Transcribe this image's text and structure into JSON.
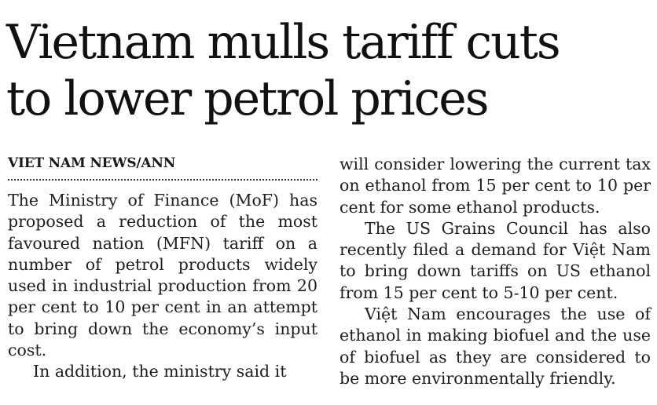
{
  "article": {
    "headline_line1": "Vietnam mulls tariff cuts",
    "headline_line2": "to lower petrol prices",
    "byline": "VIET NAM NEWS/ANN",
    "left_paragraphs": [
      "The Ministry of Finance (MoF) has proposed a reduction of the most favoured nation (MFN) tariff on a number of petrol products widely used in industrial production from 20 per cent to 10 per cent in an attempt to bring down the economy’s input cost.",
      "In addition, the ministry said it"
    ],
    "right_paragraphs": [
      "will consider lowering the current tax on ethanol from 15 per cent to 10 per cent for some ethanol products.",
      "The US Grains Council has also recently filed a demand for Việt Nam to bring down tariffs on US ethanol from 15 per cent to 5-10 per cent.",
      "Việt Nam encourages the use of ethanol in making biofuel and the use of biofuel as they are considered to be more environmentally friendly."
    ]
  }
}
